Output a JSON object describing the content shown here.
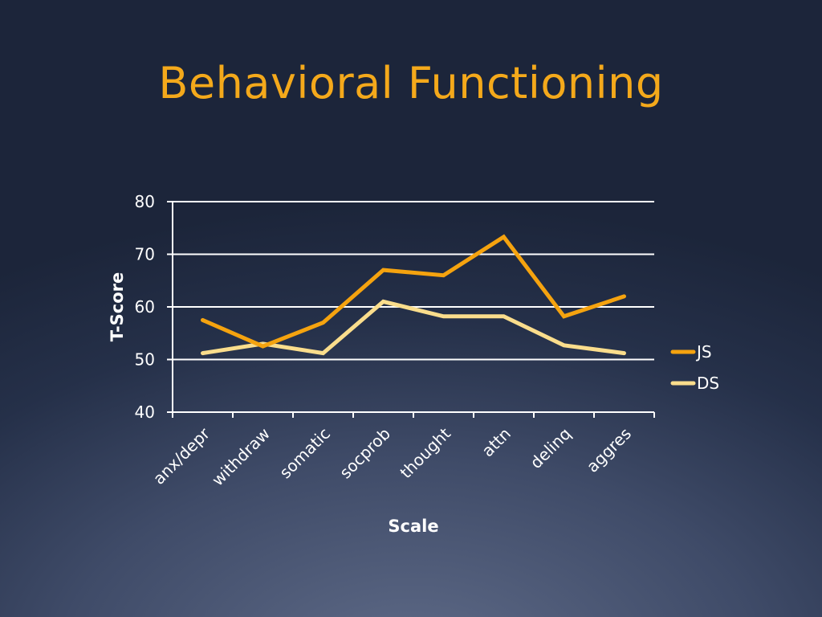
{
  "slide": {
    "title": "Behavioral Functioning",
    "title_color": "#f4a91b"
  },
  "chart_data": {
    "type": "line",
    "categories": [
      "anx/depr",
      "withdraw",
      "somatic",
      "socprob",
      "thought",
      "attn",
      "delinq",
      "aggres"
    ],
    "series": [
      {
        "name": "JS",
        "color": "#f5a30f",
        "values": [
          57.5,
          52.5,
          57.0,
          67.0,
          66.0,
          73.3,
          58.2,
          62.0
        ]
      },
      {
        "name": "DS",
        "color": "#fadd8c",
        "values": [
          51.2,
          53.0,
          51.2,
          61.0,
          58.2,
          58.2,
          52.7,
          51.2
        ]
      }
    ],
    "xlabel": "Scale",
    "ylabel": "T-Score",
    "ylim": [
      40,
      80
    ],
    "yticks": [
      40,
      50,
      60,
      70,
      80
    ],
    "grid": true,
    "legend_position": "right"
  }
}
